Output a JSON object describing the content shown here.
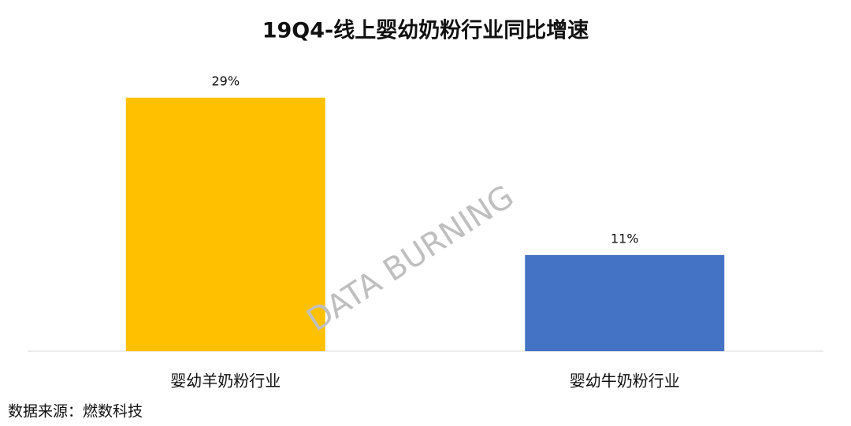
{
  "chart_data": {
    "type": "bar",
    "title": "19Q4-线上婴幼奶粉行业同比增速",
    "categories": [
      "婴幼羊奶粉行业",
      "婴幼牛奶粉行业"
    ],
    "values": [
      29,
      11
    ],
    "value_labels": [
      "29%",
      "11%"
    ],
    "colors": [
      "#ffc000",
      "#4472c4"
    ],
    "annotation": "DATA BURNING",
    "source": "数据来源：燃数科技"
  }
}
